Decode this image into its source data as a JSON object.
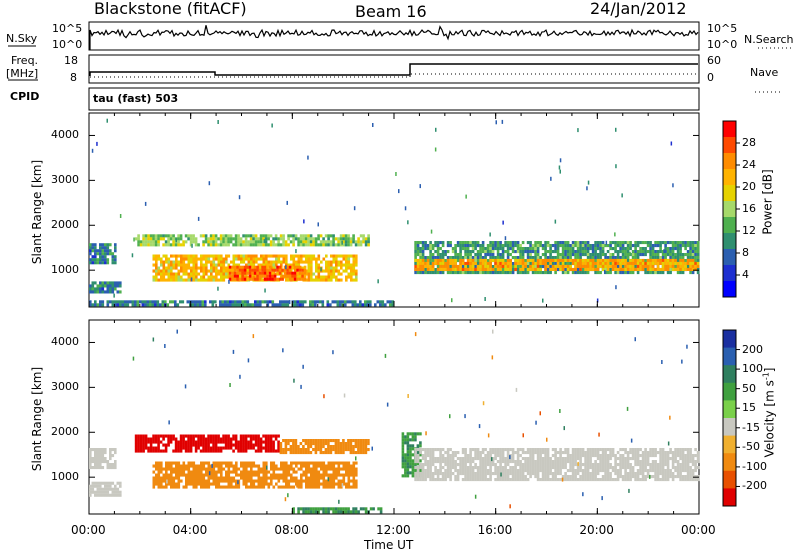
{
  "header": {
    "station": "Blackstone (fitACF)",
    "beam": "Beam 16",
    "date": "24/Jan/2012"
  },
  "top_panels": {
    "nsky_label": "N.Sky",
    "nsky_ticks": [
      "10^5",
      "10^0"
    ],
    "nsearch_label": "N.Search",
    "nsearch_ticks": [
      "10^5",
      "10^0"
    ],
    "freq_label_line1": "Freq.",
    "freq_label_line2": "[MHz]",
    "freq_ticks": [
      "18",
      "8"
    ],
    "nave_label": "Nave",
    "nave_ticks": [
      "60",
      "0"
    ],
    "cpid_label": "CPID",
    "cpid_text": "tau (fast) 503"
  },
  "chart_data": [
    {
      "type": "heatmap",
      "name": "power",
      "ylabel": "Slant Range [km]",
      "ylim": [
        180,
        4500
      ],
      "yticks": [
        1000,
        2000,
        3000,
        4000
      ],
      "xlabel": "Time UT",
      "xlim": [
        0,
        24
      ],
      "xticks": [
        "00:00",
        "04:00",
        "08:00",
        "12:00",
        "16:00",
        "20:00",
        "00:00"
      ],
      "colorbar_label": "Power [dB]",
      "colorbar_ticks": [
        "28",
        "24",
        "20",
        "16",
        "12",
        "8",
        "4"
      ],
      "colorbar_colors": [
        "#ff0000",
        "#ff4a00",
        "#ff8c00",
        "#ffb300",
        "#e6d200",
        "#a6d96a",
        "#4fb04f",
        "#2f8f6f",
        "#2b5fb0",
        "#1d2fd0",
        "#0000ff"
      ],
      "bands": [
        {
          "t0": 0.0,
          "t1": 1.2,
          "r0": 500,
          "r1": 750,
          "level": 8
        },
        {
          "t0": 0.0,
          "t1": 1.0,
          "r0": 1150,
          "r1": 1600,
          "level": 8
        },
        {
          "t0": 1.8,
          "t1": 11.0,
          "r0": 1550,
          "r1": 1800,
          "level": 14
        },
        {
          "t0": 2.5,
          "t1": 10.5,
          "r0": 800,
          "r1": 1350,
          "level": 20
        },
        {
          "t0": 5.5,
          "t1": 8.5,
          "r0": 800,
          "r1": 1100,
          "level": 26
        },
        {
          "t0": 0.0,
          "t1": 12.0,
          "r0": 200,
          "r1": 330,
          "level": 8
        },
        {
          "t0": 12.8,
          "t1": 24.0,
          "r0": 950,
          "r1": 1650,
          "level": 10
        },
        {
          "t0": 12.8,
          "t1": 24.0,
          "r0": 1000,
          "r1": 1250,
          "level": 22
        }
      ]
    },
    {
      "type": "heatmap",
      "name": "velocity",
      "ylabel": "Slant Range [km]",
      "ylim": [
        180,
        4500
      ],
      "yticks": [
        1000,
        2000,
        3000,
        4000
      ],
      "xlabel": "Time UT",
      "xlim": [
        0,
        24
      ],
      "xticks": [
        "00:00",
        "04:00",
        "08:00",
        "12:00",
        "16:00",
        "20:00",
        "00:00"
      ],
      "colorbar_label": "Velocity [m s",
      "colorbar_unit_sup": "-1",
      "colorbar_ticks": [
        "200",
        "100",
        "50",
        "15",
        "-15",
        "-50",
        "-100",
        "-200"
      ],
      "colorbar_colors": [
        "#1a2fa0",
        "#2a5fb0",
        "#2f7f5f",
        "#3fa03f",
        "#7ad04a",
        "#c8c8c0",
        "#f0b030",
        "#f08a10",
        "#e85000",
        "#e00000"
      ],
      "bands": [
        {
          "t0": 0.0,
          "t1": 1.2,
          "r0": 600,
          "r1": 900,
          "vel": 0
        },
        {
          "t0": 0.0,
          "t1": 1.0,
          "r0": 1200,
          "r1": 1650,
          "vel": 0
        },
        {
          "t0": 1.8,
          "t1": 7.5,
          "r0": 1550,
          "r1": 1950,
          "vel": -200
        },
        {
          "t0": 7.5,
          "t1": 11.0,
          "r0": 1550,
          "r1": 1850,
          "vel": -60
        },
        {
          "t0": 2.5,
          "t1": 10.5,
          "r0": 800,
          "r1": 1350,
          "vel": -80
        },
        {
          "t0": 8.0,
          "t1": 11.5,
          "r0": 200,
          "r1": 330,
          "vel": 30
        },
        {
          "t0": 12.3,
          "t1": 13.0,
          "r0": 1000,
          "r1": 2000,
          "vel": 30
        },
        {
          "t0": 12.8,
          "t1": 24.0,
          "r0": 950,
          "r1": 1650,
          "vel": 0
        }
      ]
    }
  ]
}
